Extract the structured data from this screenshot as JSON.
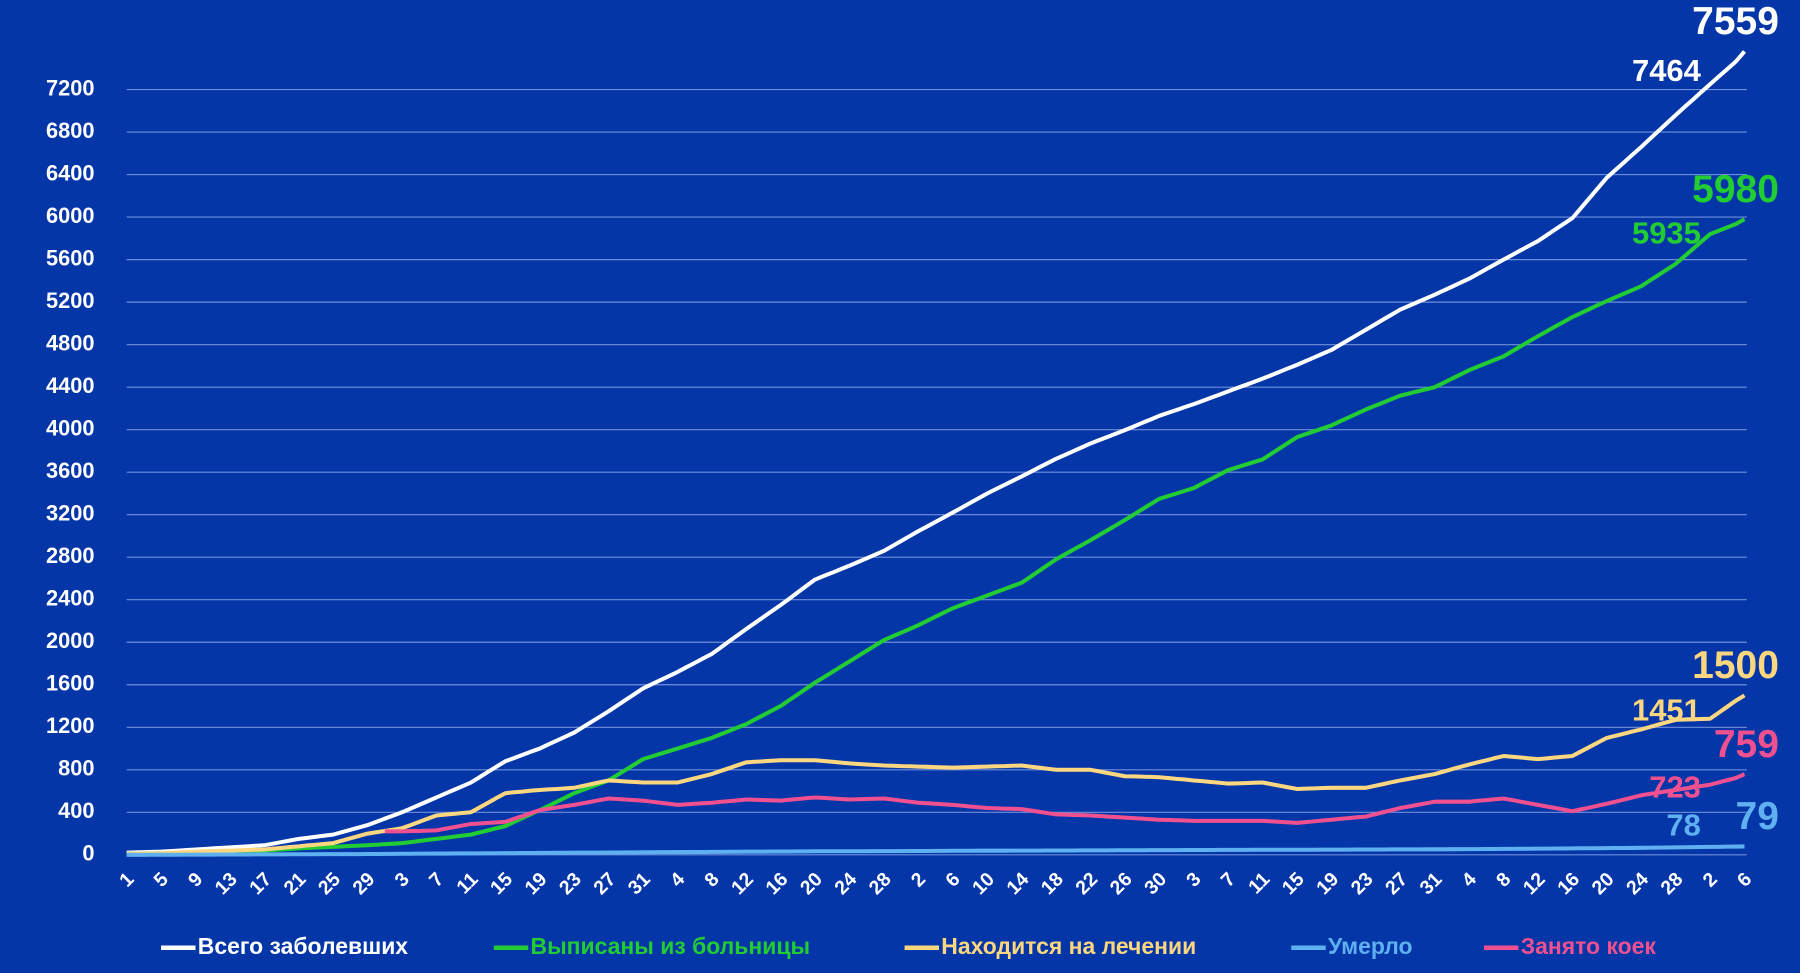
{
  "chart_data": {
    "type": "line",
    "categories": [
      "1",
      null,
      null,
      null,
      "5",
      null,
      null,
      null,
      "9",
      null,
      null,
      null,
      "13",
      null,
      null,
      null,
      "17",
      null,
      null,
      null,
      "21",
      null,
      null,
      null,
      "25",
      null,
      null,
      null,
      "29",
      null,
      null,
      null,
      "3",
      null,
      null,
      null,
      "7",
      null,
      null,
      null,
      "11",
      null,
      null,
      null,
      "15",
      null,
      null,
      null,
      "19",
      null,
      null,
      null,
      "23",
      null,
      null,
      null,
      "27",
      null,
      null,
      null,
      "31",
      null,
      null,
      null,
      "4",
      null,
      null,
      null,
      "8",
      null,
      null,
      null,
      "12",
      null,
      null,
      null,
      "16",
      null,
      null,
      null,
      "20",
      null,
      null,
      null,
      "24",
      null,
      null,
      null,
      "28",
      null,
      null,
      null,
      "2",
      null,
      null,
      null,
      "6",
      null,
      null,
      null,
      "10",
      null,
      null,
      null,
      "14",
      null,
      null,
      null,
      "18",
      null,
      null,
      null,
      "22",
      null,
      null,
      null,
      "26",
      null,
      null,
      null,
      "30",
      null,
      null,
      null,
      "3",
      null,
      null,
      null,
      "7",
      null,
      null,
      null,
      "11",
      null,
      null,
      null,
      "15",
      null,
      null,
      null,
      "19",
      null,
      null,
      null,
      "23",
      null,
      null,
      null,
      "27",
      null,
      null,
      null,
      "31",
      null,
      null,
      null,
      "4",
      null,
      null,
      null,
      "8",
      null,
      null,
      null,
      "12",
      null,
      null,
      null,
      "16",
      null,
      null,
      null,
      "20",
      null,
      null,
      null,
      "24",
      null,
      null,
      null,
      "28",
      null,
      null,
      null,
      "2",
      null,
      null,
      null,
      "6"
    ],
    "series": [
      {
        "name": "Всего заболевших",
        "color": "#ffffff",
        "values": [
          20,
          23,
          25,
          28,
          30,
          35,
          40,
          45,
          50,
          55,
          60,
          65,
          70,
          75,
          80,
          85,
          90,
          105,
          120,
          135,
          150,
          160,
          170,
          180,
          190,
          213,
          235,
          258,
          280,
          310,
          340,
          370,
          400,
          435,
          470,
          505,
          540,
          575,
          610,
          645,
          680,
          730,
          780,
          830,
          880,
          910,
          940,
          970,
          1000,
          1038,
          1075,
          1113,
          1150,
          1200,
          1250,
          1300,
          1350,
          1404,
          1458,
          1511,
          1565,
          1604,
          1643,
          1681,
          1720,
          1763,
          1805,
          1848,
          1890,
          1949,
          2008,
          2066,
          2125,
          2181,
          2238,
          2294,
          2350,
          2410,
          2470,
          2530,
          2590,
          2623,
          2655,
          2688,
          2720,
          2755,
          2790,
          2825,
          2860,
          2906,
          2953,
          2999,
          3045,
          3089,
          3133,
          3176,
          3220,
          3265,
          3310,
          3355,
          3400,
          3440,
          3480,
          3520,
          3560,
          3601,
          3643,
          3684,
          3725,
          3761,
          3798,
          3834,
          3870,
          3901,
          3933,
          3964,
          3995,
          4029,
          4063,
          4096,
          4130,
          4158,
          4185,
          4213,
          4240,
          4270,
          4300,
          4330,
          4360,
          4390,
          4420,
          4450,
          4480,
          4513,
          4545,
          4578,
          4610,
          4645,
          4680,
          4715,
          4750,
          4798,
          4845,
          4893,
          4940,
          4988,
          5035,
          5083,
          5130,
          5165,
          5200,
          5235,
          5270,
          5308,
          5345,
          5383,
          5420,
          5465,
          5510,
          5555,
          5600,
          5644,
          5688,
          5731,
          5775,
          5829,
          5883,
          5936,
          5990,
          6085,
          6180,
          6275,
          6370,
          6443,
          6515,
          6588,
          6660,
          6735,
          6810,
          6885,
          6960,
          7033,
          7105,
          7178,
          7250,
          7321,
          7393,
          7464,
          7559
        ]
      },
      {
        "name": "Выписаны из больницы",
        "color": "#22cc33",
        "values": [
          10,
          11,
          13,
          14,
          15,
          16,
          18,
          19,
          20,
          23,
          25,
          28,
          30,
          33,
          35,
          38,
          40,
          45,
          50,
          55,
          60,
          64,
          68,
          71,
          75,
          79,
          83,
          86,
          90,
          95,
          100,
          105,
          110,
          120,
          130,
          140,
          150,
          160,
          170,
          180,
          190,
          210,
          230,
          250,
          270,
          308,
          345,
          383,
          420,
          460,
          500,
          540,
          580,
          610,
          640,
          670,
          700,
          750,
          800,
          850,
          900,
          925,
          950,
          975,
          1000,
          1025,
          1050,
          1075,
          1100,
          1133,
          1165,
          1198,
          1230,
          1273,
          1315,
          1358,
          1400,
          1455,
          1510,
          1565,
          1620,
          1670,
          1720,
          1770,
          1820,
          1870,
          1920,
          1970,
          2020,
          2055,
          2090,
          2125,
          2160,
          2200,
          2240,
          2280,
          2320,
          2350,
          2380,
          2410,
          2440,
          2470,
          2500,
          2530,
          2560,
          2615,
          2670,
          2725,
          2780,
          2825,
          2870,
          2915,
          2960,
          3008,
          3055,
          3103,
          3150,
          3200,
          3250,
          3300,
          3350,
          3375,
          3400,
          3425,
          3450,
          3493,
          3535,
          3578,
          3620,
          3645,
          3670,
          3695,
          3720,
          3773,
          3825,
          3878,
          3930,
          3958,
          3985,
          4013,
          4040,
          4078,
          4115,
          4153,
          4190,
          4223,
          4255,
          4288,
          4320,
          4340,
          4360,
          4380,
          4400,
          4440,
          4480,
          4520,
          4560,
          4593,
          4625,
          4658,
          4690,
          4738,
          4785,
          4833,
          4880,
          4925,
          4970,
          5015,
          5060,
          5098,
          5135,
          5173,
          5210,
          5245,
          5280,
          5315,
          5350,
          5403,
          5455,
          5508,
          5560,
          5630,
          5700,
          5770,
          5840,
          5872,
          5903,
          5935,
          5980
        ]
      },
      {
        "name": "Находится на лечении",
        "color": "#fcd77f",
        "values": [
          10,
          11,
          13,
          14,
          15,
          19,
          23,
          26,
          30,
          33,
          35,
          38,
          40,
          43,
          45,
          48,
          50,
          58,
          65,
          73,
          80,
          88,
          95,
          103,
          110,
          133,
          155,
          178,
          200,
          213,
          225,
          238,
          250,
          280,
          310,
          340,
          370,
          378,
          385,
          393,
          400,
          445,
          490,
          535,
          580,
          588,
          595,
          603,
          610,
          615,
          620,
          625,
          630,
          648,
          665,
          683,
          700,
          695,
          690,
          685,
          680,
          680,
          680,
          680,
          680,
          700,
          720,
          740,
          760,
          788,
          815,
          843,
          870,
          875,
          880,
          885,
          890,
          890,
          890,
          890,
          890,
          883,
          875,
          868,
          860,
          855,
          850,
          845,
          840,
          838,
          835,
          833,
          830,
          828,
          825,
          823,
          820,
          823,
          825,
          828,
          830,
          833,
          835,
          838,
          840,
          830,
          820,
          810,
          800,
          800,
          800,
          800,
          800,
          785,
          770,
          755,
          740,
          738,
          735,
          733,
          730,
          723,
          715,
          708,
          700,
          693,
          685,
          678,
          670,
          673,
          675,
          678,
          680,
          665,
          650,
          635,
          620,
          623,
          625,
          628,
          630,
          630,
          630,
          630,
          630,
          648,
          665,
          683,
          700,
          715,
          730,
          745,
          760,
          783,
          805,
          828,
          850,
          870,
          890,
          910,
          930,
          923,
          915,
          908,
          900,
          908,
          915,
          923,
          930,
          973,
          1015,
          1058,
          1100,
          1120,
          1140,
          1160,
          1180,
          1203,
          1225,
          1248,
          1270,
          1273,
          1275,
          1278,
          1280,
          1337,
          1394,
          1451,
          1500
        ]
      },
      {
        "name": "Умерло",
        "color": "#5fb0f0",
        "values": [
          0,
          0,
          0,
          1,
          1,
          1,
          1,
          2,
          2,
          2,
          2,
          3,
          3,
          3,
          3,
          4,
          4,
          4,
          4,
          5,
          5,
          5,
          5,
          6,
          6,
          6,
          7,
          7,
          8,
          8,
          9,
          9,
          10,
          10,
          11,
          11,
          12,
          12,
          13,
          13,
          14,
          14,
          15,
          15,
          16,
          16,
          17,
          17,
          18,
          18,
          19,
          19,
          20,
          20,
          21,
          21,
          22,
          22,
          23,
          23,
          24,
          24,
          25,
          25,
          26,
          26,
          27,
          27,
          28,
          28,
          29,
          29,
          30,
          30,
          30,
          31,
          31,
          31,
          32,
          32,
          33,
          33,
          33,
          34,
          34,
          34,
          34,
          35,
          35,
          35,
          35,
          36,
          36,
          36,
          37,
          37,
          38,
          38,
          38,
          39,
          39,
          39,
          39,
          40,
          40,
          40,
          40,
          41,
          41,
          41,
          41,
          42,
          42,
          42,
          42,
          43,
          43,
          43,
          43,
          44,
          44,
          44,
          44,
          45,
          45,
          45,
          45,
          46,
          46,
          46,
          46,
          47,
          47,
          47,
          47,
          48,
          48,
          48,
          48,
          49,
          49,
          49,
          49,
          50,
          50,
          50,
          50,
          51,
          51,
          51,
          51,
          52,
          52,
          52,
          53,
          53,
          54,
          54,
          55,
          55,
          56,
          56,
          57,
          57,
          58,
          58,
          59,
          59,
          60,
          61,
          61,
          62,
          63,
          64,
          64,
          65,
          66,
          67,
          68,
          69,
          70,
          71,
          72,
          73,
          74,
          75,
          77,
          78,
          79
        ]
      },
      {
        "name": "Занято коек",
        "color": "#f0508f",
        "values": [
          null,
          null,
          null,
          null,
          null,
          null,
          null,
          null,
          null,
          null,
          null,
          null,
          null,
          null,
          null,
          null,
          null,
          null,
          null,
          null,
          null,
          null,
          null,
          null,
          null,
          null,
          null,
          null,
          null,
          null,
          220,
          220,
          220,
          223,
          225,
          228,
          230,
          245,
          260,
          275,
          290,
          295,
          300,
          305,
          310,
          338,
          365,
          393,
          420,
          433,
          445,
          458,
          470,
          485,
          500,
          515,
          530,
          525,
          520,
          515,
          510,
          500,
          490,
          480,
          470,
          475,
          480,
          485,
          490,
          498,
          505,
          513,
          520,
          518,
          515,
          513,
          510,
          518,
          525,
          533,
          540,
          535,
          530,
          525,
          520,
          523,
          525,
          528,
          530,
          520,
          510,
          500,
          490,
          485,
          480,
          475,
          470,
          463,
          455,
          448,
          440,
          438,
          435,
          433,
          430,
          418,
          405,
          393,
          380,
          378,
          375,
          373,
          370,
          365,
          360,
          355,
          350,
          345,
          340,
          335,
          330,
          328,
          325,
          323,
          320,
          320,
          320,
          320,
          320,
          320,
          320,
          320,
          320,
          315,
          310,
          305,
          300,
          308,
          315,
          323,
          330,
          338,
          345,
          353,
          360,
          380,
          400,
          420,
          440,
          455,
          470,
          485,
          500,
          500,
          500,
          500,
          500,
          508,
          515,
          523,
          530,
          515,
          500,
          485,
          470,
          455,
          440,
          425,
          410,
          428,
          445,
          463,
          480,
          500,
          520,
          540,
          560,
          573,
          585,
          598,
          610,
          623,
          635,
          648,
          660,
          681,
          702,
          723,
          759
        ]
      }
    ],
    "ylim": [
      0,
      7600
    ],
    "yticks": [
      0,
      400,
      800,
      1200,
      1600,
      2000,
      2400,
      2800,
      3200,
      3600,
      4000,
      4400,
      4800,
      5200,
      5600,
      6000,
      6400,
      6800,
      7200
    ],
    "grid": true,
    "legend": "bottom"
  }
}
